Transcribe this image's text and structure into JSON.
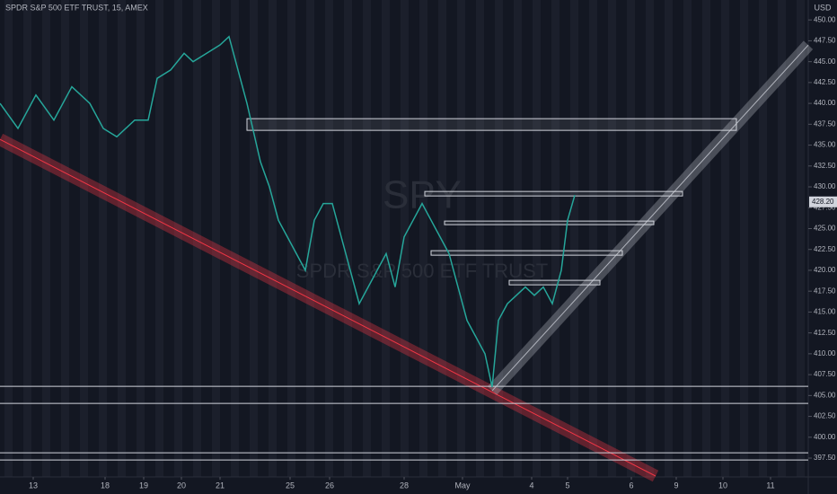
{
  "chart_data": {
    "type": "line",
    "title": "SPDR S&P 500 ETF TRUST, 15, AMEX",
    "watermark": "SPY",
    "watermark_subtitle": "SPDR S&P 500 ETF TRUST",
    "currency": "USD",
    "last_price": 428.2,
    "last_price_label": "428.20",
    "color": "#26a69a",
    "ylim": [
      395.35,
      451.85
    ],
    "yticks": [
      {
        "value": 397.5,
        "label": "397.50"
      },
      {
        "value": 400,
        "label": "400.00"
      },
      {
        "value": 402.5,
        "label": "402.50"
      },
      {
        "value": 405,
        "label": "405.00"
      },
      {
        "value": 407.5,
        "label": "407.50"
      },
      {
        "value": 410,
        "label": "410.00"
      },
      {
        "value": 412.5,
        "label": "412.50"
      },
      {
        "value": 415,
        "label": "415.00"
      },
      {
        "value": 417.5,
        "label": "417.50"
      },
      {
        "value": 420,
        "label": "420.00"
      },
      {
        "value": 422.5,
        "label": "422.50"
      },
      {
        "value": 425,
        "label": "425.00"
      },
      {
        "value": 427.5,
        "label": "427.50"
      },
      {
        "value": 430,
        "label": "430.00"
      },
      {
        "value": 432.5,
        "label": "432.50"
      },
      {
        "value": 435,
        "label": "435.00"
      },
      {
        "value": 437.5,
        "label": "437.50"
      },
      {
        "value": 440,
        "label": "440.00"
      },
      {
        "value": 442.5,
        "label": "442.50"
      },
      {
        "value": 445,
        "label": "445.00"
      },
      {
        "value": 447.5,
        "label": "447.50"
      },
      {
        "value": 450,
        "label": "450.00"
      }
    ],
    "xlim": [
      0,
      900
    ],
    "xticks": [
      {
        "value": 37,
        "label": "13"
      },
      {
        "value": 117,
        "label": "18"
      },
      {
        "value": 160,
        "label": "19"
      },
      {
        "value": 202,
        "label": "20"
      },
      {
        "value": 245,
        "label": "21"
      },
      {
        "value": 323,
        "label": "25"
      },
      {
        "value": 367,
        "label": "26"
      },
      {
        "value": 450,
        "label": "28"
      },
      {
        "value": 515,
        "label": "May"
      },
      {
        "value": 592,
        "label": "4"
      },
      {
        "value": 632,
        "label": "5"
      },
      {
        "value": 703,
        "label": "6"
      },
      {
        "value": 753,
        "label": "9"
      },
      {
        "value": 805,
        "label": "10"
      },
      {
        "value": 858,
        "label": "11"
      }
    ],
    "x": [
      0,
      20,
      40,
      60,
      80,
      100,
      115,
      130,
      150,
      165,
      175,
      190,
      205,
      215,
      230,
      245,
      255,
      265,
      275,
      290,
      300,
      310,
      320,
      330,
      340,
      350,
      360,
      370,
      380,
      390,
      400,
      410,
      420,
      430,
      440,
      450,
      460,
      470,
      480,
      490,
      500,
      510,
      520,
      530,
      540,
      548,
      555,
      565,
      575,
      585,
      595,
      605,
      615,
      625,
      632,
      640
    ],
    "values": [
      440,
      437,
      441,
      438,
      442,
      440,
      437,
      436,
      438,
      438,
      443,
      444,
      446,
      445,
      446,
      447,
      448,
      444,
      440,
      433,
      430,
      426,
      424,
      422,
      420,
      426,
      428,
      428,
      424,
      420,
      416,
      418,
      420,
      422,
      418,
      424,
      426,
      428,
      426,
      424,
      422,
      418,
      414,
      412,
      410,
      406,
      414,
      416,
      417,
      418,
      417,
      418,
      416,
      420,
      426,
      429
    ],
    "zones": [
      {
        "x0": 275,
        "x1": 820,
        "low": 436.77,
        "high": 438.17
      },
      {
        "x0": 473,
        "x1": 760,
        "low": 428.91,
        "high": 429.45
      },
      {
        "x0": 495,
        "x1": 728,
        "low": 425.47,
        "high": 425.9
      },
      {
        "x0": 480,
        "x1": 693,
        "low": 421.81,
        "high": 422.35
      },
      {
        "x0": 567,
        "x1": 668,
        "low": 418.26,
        "high": 418.8
      }
    ],
    "levels": [
      406.1,
      404.06,
      398.14,
      397.28
    ],
    "trendlines": [
      {
        "x0": 0,
        "y0": 435.69,
        "x1": 730,
        "y1": 395.35,
        "color": "#f23645"
      },
      {
        "x0": 548,
        "y0": 405.57,
        "x1": 900,
        "y1": 446.99,
        "color": "#b2b5be"
      }
    ]
  }
}
